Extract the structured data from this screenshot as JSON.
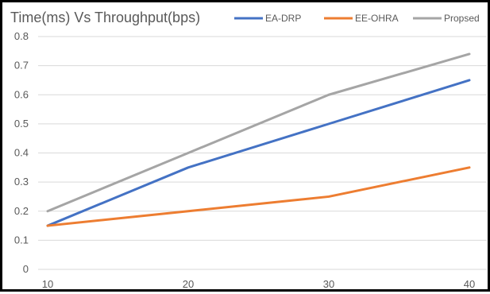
{
  "chart_data": {
    "type": "line",
    "title": "Time(ms) Vs Throughput(bps)",
    "xlabel": "",
    "ylabel": "",
    "categories": [
      "10",
      "20",
      "30",
      "40"
    ],
    "x": [
      10,
      20,
      30,
      40
    ],
    "ylim": [
      0,
      0.8
    ],
    "yticks": [
      "0",
      "0.1",
      "0.2",
      "0.3",
      "0.4",
      "0.5",
      "0.6",
      "0.7",
      "0.8"
    ],
    "grid": true,
    "legend_position": "top-right",
    "series": [
      {
        "name": "EA-DRP",
        "color": "#4472c4",
        "values": [
          0.15,
          0.35,
          0.5,
          0.65
        ]
      },
      {
        "name": "EE-OHRA",
        "color": "#ed7d31",
        "values": [
          0.15,
          0.2,
          0.25,
          0.35
        ]
      },
      {
        "name": "Propsed",
        "color": "#a5a5a5",
        "values": [
          0.2,
          0.4,
          0.6,
          0.74
        ]
      }
    ]
  }
}
